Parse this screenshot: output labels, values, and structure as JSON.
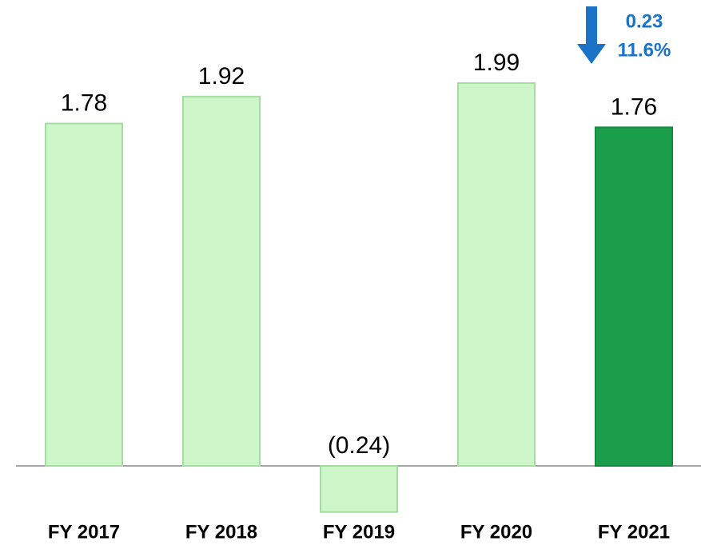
{
  "chart_data": {
    "type": "bar",
    "categories": [
      "FY 2017",
      "FY 2018",
      "FY 2019",
      "FY 2020",
      "FY 2021"
    ],
    "values": [
      1.78,
      1.92,
      -0.24,
      1.99,
      1.76
    ],
    "value_labels": [
      "1.78",
      "1.92",
      "(0.24)",
      "1.99",
      "1.76"
    ],
    "colors": [
      "#ccf5c8",
      "#ccf5c8",
      "#ccf5c8",
      "#ccf5c8",
      "#1a9e4a"
    ],
    "annotations": [
      "0.23",
      "11.6%"
    ],
    "annotation_color": "#1a73c7"
  }
}
